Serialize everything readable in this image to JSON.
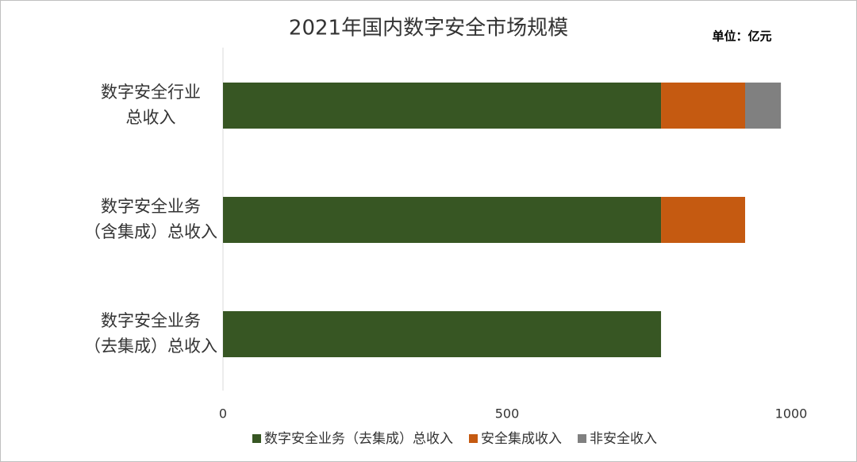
{
  "chart_data": {
    "type": "stacked-barh",
    "title": "2021年国内数字安全市场规模",
    "annotation": "单位：亿元",
    "categories": [
      [
        "数字安全行业",
        "总收入"
      ],
      [
        "数字安全业务",
        "（含集成）总收入"
      ],
      [
        "数字安全业务",
        "（去集成）总收入"
      ]
    ],
    "series": [
      {
        "name": "数字安全业务（去集成）总收入",
        "color": "#375623",
        "values": [
          771,
          771,
          771
        ]
      },
      {
        "name": "安全集成收入",
        "color": "#c55a11",
        "values": [
          148,
          148,
          null
        ]
      },
      {
        "name": "非安全收入",
        "color": "#808080",
        "values": [
          63,
          null,
          null
        ]
      }
    ],
    "xlim": [
      0,
      1000
    ],
    "xticks": [
      0,
      500,
      1000
    ],
    "legend": "bottom"
  }
}
